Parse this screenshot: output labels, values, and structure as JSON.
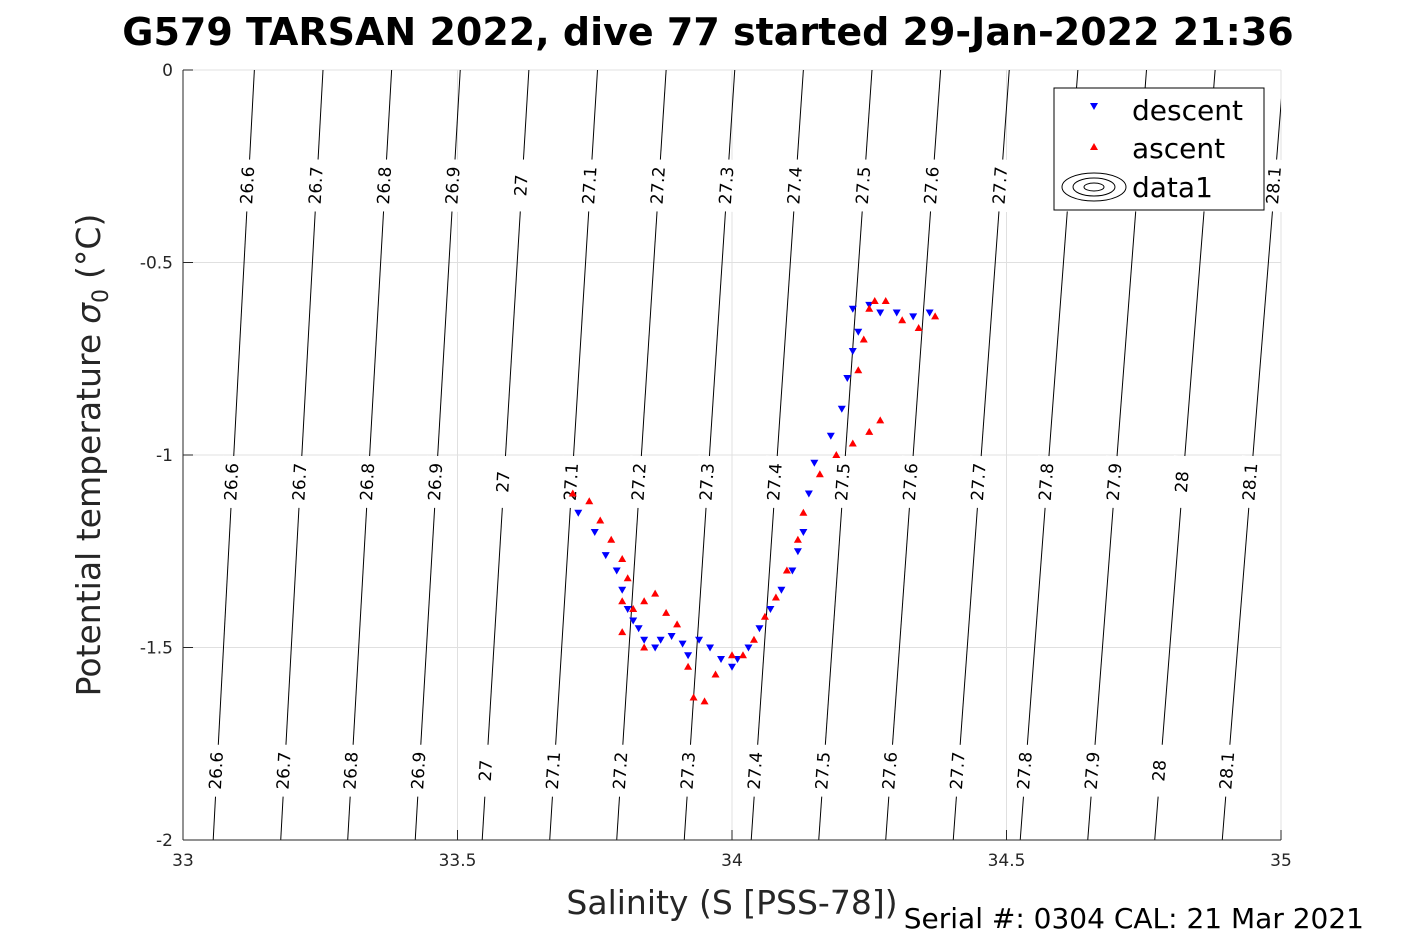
{
  "chart_data": {
    "type": "scatter",
    "title": "G579 TARSAN 2022, dive 77 started 29-Jan-2022 21:36",
    "xlabel": "Salinity (S [PSS-78])",
    "ylabel": "Potential temperature",
    "ylabel_symbol": "σ",
    "ylabel_subscript": "0",
    "ylabel_unit": "(°C)",
    "xlim": [
      33,
      35
    ],
    "ylim": [
      -2,
      0
    ],
    "xticks": [
      33,
      33.5,
      34,
      34.5,
      35
    ],
    "yticks": [
      0,
      -0.5,
      -1,
      -1.5,
      -2
    ],
    "xtick_labels": [
      "33",
      "33.5",
      "34",
      "34.5",
      "35"
    ],
    "ytick_labels": [
      "0",
      "-0.5",
      "-1",
      "-1.5",
      "-2"
    ],
    "grid": true,
    "legend_position": "top-right",
    "legend": [
      "descent",
      "ascent",
      "data1"
    ],
    "footer": "Serial #: 0304  CAL: 21 Mar 2021",
    "colors": {
      "descent": "#0000ff",
      "ascent": "#ff0000",
      "contour": "#000000",
      "grid": "#e0e0e0"
    },
    "density_contours": {
      "levels": [
        "26.6",
        "26.7",
        "26.8",
        "26.9",
        "27",
        "27.1",
        "27.2",
        "27.3",
        "27.4",
        "27.5",
        "27.6",
        "27.7",
        "27.8",
        "27.9",
        "28",
        "28.1"
      ],
      "salinity_at_top": [
        33.13,
        33.255,
        33.38,
        33.505,
        33.63,
        33.755,
        33.88,
        34.005,
        34.13,
        34.255,
        34.38,
        34.505,
        34.63,
        34.755,
        34.88,
        35.005
      ],
      "salinity_at_bottom": [
        33.055,
        33.178,
        33.3,
        33.423,
        33.545,
        33.668,
        33.79,
        33.913,
        34.035,
        34.158,
        34.28,
        34.403,
        34.525,
        34.648,
        34.77,
        34.893
      ],
      "label_rows_theta": [
        -0.3,
        -1.07,
        -1.82
      ]
    },
    "series": [
      {
        "name": "descent",
        "marker": "triangle-down",
        "points": [
          [
            33.72,
            -1.15
          ],
          [
            33.75,
            -1.2
          ],
          [
            33.77,
            -1.26
          ],
          [
            33.79,
            -1.3
          ],
          [
            33.8,
            -1.35
          ],
          [
            33.81,
            -1.4
          ],
          [
            33.82,
            -1.43
          ],
          [
            33.83,
            -1.45
          ],
          [
            33.84,
            -1.48
          ],
          [
            33.86,
            -1.5
          ],
          [
            33.87,
            -1.48
          ],
          [
            33.89,
            -1.47
          ],
          [
            33.91,
            -1.49
          ],
          [
            33.92,
            -1.52
          ],
          [
            33.94,
            -1.48
          ],
          [
            33.96,
            -1.5
          ],
          [
            33.98,
            -1.53
          ],
          [
            34.0,
            -1.55
          ],
          [
            34.01,
            -1.53
          ],
          [
            34.03,
            -1.5
          ],
          [
            34.05,
            -1.45
          ],
          [
            34.07,
            -1.4
          ],
          [
            34.09,
            -1.35
          ],
          [
            34.11,
            -1.3
          ],
          [
            34.12,
            -1.25
          ],
          [
            34.13,
            -1.2
          ],
          [
            34.14,
            -1.1
          ],
          [
            34.15,
            -1.02
          ],
          [
            34.18,
            -0.95
          ],
          [
            34.2,
            -0.88
          ],
          [
            34.21,
            -0.8
          ],
          [
            34.22,
            -0.73
          ],
          [
            34.23,
            -0.68
          ],
          [
            34.22,
            -0.62
          ],
          [
            34.25,
            -0.61
          ],
          [
            34.27,
            -0.63
          ],
          [
            34.3,
            -0.63
          ],
          [
            34.33,
            -0.64
          ],
          [
            34.36,
            -0.63
          ]
        ]
      },
      {
        "name": "ascent",
        "marker": "triangle-up",
        "points": [
          [
            33.71,
            -1.1
          ],
          [
            33.74,
            -1.12
          ],
          [
            33.76,
            -1.17
          ],
          [
            33.78,
            -1.22
          ],
          [
            33.8,
            -1.27
          ],
          [
            33.81,
            -1.32
          ],
          [
            33.8,
            -1.38
          ],
          [
            33.82,
            -1.4
          ],
          [
            33.84,
            -1.38
          ],
          [
            33.86,
            -1.36
          ],
          [
            33.88,
            -1.41
          ],
          [
            33.9,
            -1.44
          ],
          [
            33.8,
            -1.46
          ],
          [
            33.84,
            -1.5
          ],
          [
            33.92,
            -1.55
          ],
          [
            33.93,
            -1.63
          ],
          [
            33.95,
            -1.64
          ],
          [
            33.97,
            -1.57
          ],
          [
            34.0,
            -1.52
          ],
          [
            34.02,
            -1.52
          ],
          [
            34.04,
            -1.48
          ],
          [
            34.06,
            -1.42
          ],
          [
            34.08,
            -1.37
          ],
          [
            34.1,
            -1.3
          ],
          [
            34.12,
            -1.22
          ],
          [
            34.13,
            -1.15
          ],
          [
            34.16,
            -1.05
          ],
          [
            34.19,
            -1.0
          ],
          [
            34.22,
            -0.97
          ],
          [
            34.25,
            -0.94
          ],
          [
            34.27,
            -0.91
          ],
          [
            34.23,
            -0.78
          ],
          [
            34.24,
            -0.7
          ],
          [
            34.25,
            -0.62
          ],
          [
            34.26,
            -0.6
          ],
          [
            34.28,
            -0.6
          ],
          [
            34.31,
            -0.65
          ],
          [
            34.34,
            -0.67
          ],
          [
            34.37,
            -0.64
          ]
        ]
      }
    ]
  }
}
